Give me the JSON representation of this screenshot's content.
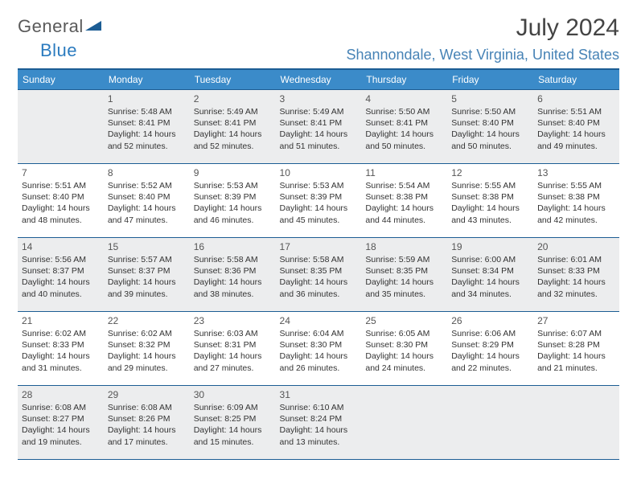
{
  "logo": {
    "text_gray": "General",
    "text_blue": "Blue"
  },
  "title": "July 2024",
  "location": "Shannondale, West Virginia, United States",
  "colors": {
    "header_bg": "#3b8bc9",
    "border": "#1c5d94",
    "location_text": "#4783b6",
    "shaded_bg": "#ecedee"
  },
  "weekdays": [
    "Sunday",
    "Monday",
    "Tuesday",
    "Wednesday",
    "Thursday",
    "Friday",
    "Saturday"
  ],
  "labels": {
    "sunrise": "Sunrise:",
    "sunset": "Sunset:",
    "daylight": "Daylight:"
  },
  "weeks": [
    [
      {
        "blank": true,
        "shaded": true
      },
      {
        "n": "1",
        "shaded": true,
        "r": "5:48 AM",
        "s": "8:41 PM",
        "d": "14 hours and 52 minutes."
      },
      {
        "n": "2",
        "shaded": true,
        "r": "5:49 AM",
        "s": "8:41 PM",
        "d": "14 hours and 52 minutes."
      },
      {
        "n": "3",
        "shaded": true,
        "r": "5:49 AM",
        "s": "8:41 PM",
        "d": "14 hours and 51 minutes."
      },
      {
        "n": "4",
        "shaded": true,
        "r": "5:50 AM",
        "s": "8:41 PM",
        "d": "14 hours and 50 minutes."
      },
      {
        "n": "5",
        "shaded": true,
        "r": "5:50 AM",
        "s": "8:40 PM",
        "d": "14 hours and 50 minutes."
      },
      {
        "n": "6",
        "shaded": true,
        "r": "5:51 AM",
        "s": "8:40 PM",
        "d": "14 hours and 49 minutes."
      }
    ],
    [
      {
        "n": "7",
        "r": "5:51 AM",
        "s": "8:40 PM",
        "d": "14 hours and 48 minutes."
      },
      {
        "n": "8",
        "r": "5:52 AM",
        "s": "8:40 PM",
        "d": "14 hours and 47 minutes."
      },
      {
        "n": "9",
        "r": "5:53 AM",
        "s": "8:39 PM",
        "d": "14 hours and 46 minutes."
      },
      {
        "n": "10",
        "r": "5:53 AM",
        "s": "8:39 PM",
        "d": "14 hours and 45 minutes."
      },
      {
        "n": "11",
        "r": "5:54 AM",
        "s": "8:38 PM",
        "d": "14 hours and 44 minutes."
      },
      {
        "n": "12",
        "r": "5:55 AM",
        "s": "8:38 PM",
        "d": "14 hours and 43 minutes."
      },
      {
        "n": "13",
        "r": "5:55 AM",
        "s": "8:38 PM",
        "d": "14 hours and 42 minutes."
      }
    ],
    [
      {
        "n": "14",
        "shaded": true,
        "r": "5:56 AM",
        "s": "8:37 PM",
        "d": "14 hours and 40 minutes."
      },
      {
        "n": "15",
        "shaded": true,
        "r": "5:57 AM",
        "s": "8:37 PM",
        "d": "14 hours and 39 minutes."
      },
      {
        "n": "16",
        "shaded": true,
        "r": "5:58 AM",
        "s": "8:36 PM",
        "d": "14 hours and 38 minutes."
      },
      {
        "n": "17",
        "shaded": true,
        "r": "5:58 AM",
        "s": "8:35 PM",
        "d": "14 hours and 36 minutes."
      },
      {
        "n": "18",
        "shaded": true,
        "r": "5:59 AM",
        "s": "8:35 PM",
        "d": "14 hours and 35 minutes."
      },
      {
        "n": "19",
        "shaded": true,
        "r": "6:00 AM",
        "s": "8:34 PM",
        "d": "14 hours and 34 minutes."
      },
      {
        "n": "20",
        "shaded": true,
        "r": "6:01 AM",
        "s": "8:33 PM",
        "d": "14 hours and 32 minutes."
      }
    ],
    [
      {
        "n": "21",
        "r": "6:02 AM",
        "s": "8:33 PM",
        "d": "14 hours and 31 minutes."
      },
      {
        "n": "22",
        "r": "6:02 AM",
        "s": "8:32 PM",
        "d": "14 hours and 29 minutes."
      },
      {
        "n": "23",
        "r": "6:03 AM",
        "s": "8:31 PM",
        "d": "14 hours and 27 minutes."
      },
      {
        "n": "24",
        "r": "6:04 AM",
        "s": "8:30 PM",
        "d": "14 hours and 26 minutes."
      },
      {
        "n": "25",
        "r": "6:05 AM",
        "s": "8:30 PM",
        "d": "14 hours and 24 minutes."
      },
      {
        "n": "26",
        "r": "6:06 AM",
        "s": "8:29 PM",
        "d": "14 hours and 22 minutes."
      },
      {
        "n": "27",
        "r": "6:07 AM",
        "s": "8:28 PM",
        "d": "14 hours and 21 minutes."
      }
    ],
    [
      {
        "n": "28",
        "shaded": true,
        "r": "6:08 AM",
        "s": "8:27 PM",
        "d": "14 hours and 19 minutes."
      },
      {
        "n": "29",
        "shaded": true,
        "r": "6:08 AM",
        "s": "8:26 PM",
        "d": "14 hours and 17 minutes."
      },
      {
        "n": "30",
        "shaded": true,
        "r": "6:09 AM",
        "s": "8:25 PM",
        "d": "14 hours and 15 minutes."
      },
      {
        "n": "31",
        "shaded": true,
        "r": "6:10 AM",
        "s": "8:24 PM",
        "d": "14 hours and 13 minutes."
      },
      {
        "blank": true,
        "shaded": true
      },
      {
        "blank": true,
        "shaded": true
      },
      {
        "blank": true,
        "shaded": true
      }
    ]
  ]
}
